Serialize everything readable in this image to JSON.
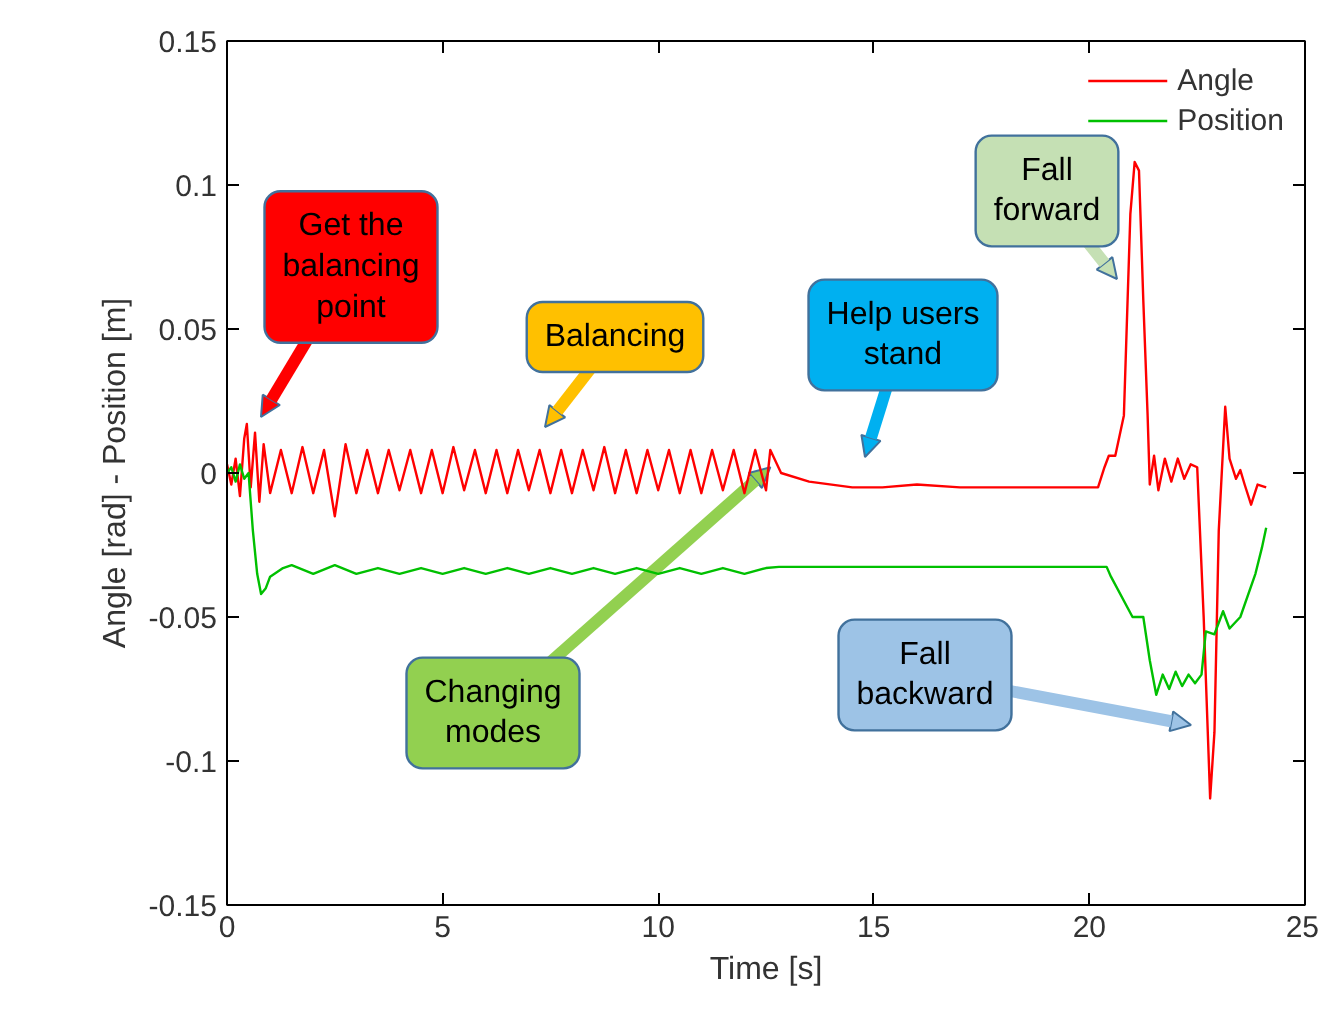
{
  "chart_data": {
    "type": "line",
    "xlabel": "Time [s]",
    "ylabel": "Angle [rad] - Position [m]",
    "legend": "top right",
    "grid": false,
    "xlim": [
      0,
      25
    ],
    "xticks": [
      0,
      5,
      10,
      15,
      20,
      25
    ],
    "ylim": [
      -0.15,
      0.15
    ],
    "yticks": [
      -0.15,
      -0.1,
      -0.05,
      0,
      0.05,
      0.1,
      0.15
    ],
    "annotations": [
      "Get the balancing point",
      "Balancing",
      "Help users stand",
      "Fall forward",
      {
        "text": "Changing modes",
        "x": 12.6,
        "y": 0.002
      },
      "Fall backward"
    ],
    "series": [
      {
        "name": "Angle",
        "color": "#ff0000",
        "x": [
          0,
          0.1,
          0.2,
          0.3,
          0.4,
          0.46,
          0.55,
          0.65,
          0.75,
          0.85,
          1.0,
          1.25,
          1.5,
          1.75,
          2.0,
          2.25,
          2.5,
          2.75,
          3.0,
          3.25,
          3.5,
          3.75,
          4.0,
          4.25,
          4.5,
          4.75,
          5.0,
          5.25,
          5.5,
          5.75,
          6.0,
          6.25,
          6.5,
          6.75,
          7.0,
          7.25,
          7.5,
          7.75,
          8.0,
          8.25,
          8.5,
          8.75,
          9.0,
          9.25,
          9.5,
          9.75,
          10.0,
          10.25,
          10.5,
          10.75,
          11.0,
          11.25,
          11.5,
          11.75,
          12.0,
          12.25,
          12.5,
          12.6,
          12.85,
          13.5,
          14.5,
          15.2,
          16,
          17,
          18,
          19,
          20.2,
          20.35,
          20.45,
          20.6,
          20.8,
          20.95,
          21.05,
          21.15,
          21.25,
          21.35,
          21.4,
          21.5,
          21.6,
          21.75,
          21.9,
          22.05,
          22.2,
          22.35,
          22.5,
          22.65,
          22.8,
          22.9,
          23.0,
          23.15,
          23.25,
          23.4,
          23.5,
          23.6,
          23.75,
          23.9,
          24.1
        ],
        "values": [
          0.003,
          -0.004,
          0.005,
          -0.008,
          0.012,
          0.017,
          -0.005,
          0.014,
          -0.01,
          0.01,
          -0.007,
          0.008,
          -0.007,
          0.009,
          -0.007,
          0.008,
          -0.015,
          0.01,
          -0.007,
          0.008,
          -0.007,
          0.008,
          -0.006,
          0.008,
          -0.007,
          0.008,
          -0.007,
          0.009,
          -0.006,
          0.008,
          -0.007,
          0.008,
          -0.007,
          0.008,
          -0.006,
          0.008,
          -0.007,
          0.008,
          -0.007,
          0.008,
          -0.006,
          0.009,
          -0.007,
          0.008,
          -0.007,
          0.008,
          -0.006,
          0.008,
          -0.007,
          0.008,
          -0.007,
          0.008,
          -0.006,
          0.008,
          -0.007,
          0.008,
          -0.006,
          0.008,
          0.0,
          -0.003,
          -0.005,
          -0.005,
          -0.004,
          -0.005,
          -0.005,
          -0.005,
          -0.005,
          0.002,
          0.006,
          0.006,
          0.02,
          0.09,
          0.108,
          0.105,
          0.06,
          0.02,
          -0.004,
          0.006,
          -0.006,
          0.005,
          -0.003,
          0.005,
          -0.002,
          0.003,
          0.002,
          -0.05,
          -0.113,
          -0.09,
          -0.02,
          0.023,
          0.005,
          -0.002,
          0.001,
          -0.004,
          -0.011,
          -0.004,
          -0.005
        ]
      },
      {
        "name": "Position",
        "color": "#00c000",
        "x": [
          0,
          0.1,
          0.2,
          0.3,
          0.4,
          0.5,
          0.6,
          0.7,
          0.79,
          0.9,
          1.0,
          1.3,
          1.5,
          2.0,
          2.5,
          3.0,
          3.5,
          4.0,
          4.5,
          5.0,
          5.5,
          6.0,
          6.5,
          7.0,
          7.5,
          8.0,
          8.5,
          9.0,
          9.5,
          10.0,
          10.5,
          11.0,
          11.5,
          12.0,
          12.5,
          12.8,
          20.4,
          20.5,
          21.0,
          21.25,
          21.4,
          21.55,
          21.7,
          21.85,
          22.0,
          22.15,
          22.3,
          22.45,
          22.6,
          22.7,
          22.9,
          23.1,
          23.25,
          23.5,
          23.85,
          24.0,
          24.1
        ],
        "values": [
          0,
          0.002,
          -0.003,
          0.003,
          -0.002,
          0.0,
          -0.02,
          -0.035,
          -0.042,
          -0.04,
          -0.036,
          -0.033,
          -0.032,
          -0.035,
          -0.032,
          -0.035,
          -0.033,
          -0.035,
          -0.033,
          -0.035,
          -0.033,
          -0.035,
          -0.033,
          -0.035,
          -0.033,
          -0.035,
          -0.033,
          -0.035,
          -0.033,
          -0.035,
          -0.033,
          -0.035,
          -0.033,
          -0.035,
          -0.033,
          -0.0326,
          -0.0326,
          -0.036,
          -0.05,
          -0.05,
          -0.065,
          -0.077,
          -0.07,
          -0.075,
          -0.069,
          -0.074,
          -0.07,
          -0.073,
          -0.07,
          -0.055,
          -0.056,
          -0.048,
          -0.054,
          -0.05,
          -0.035,
          -0.026,
          -0.019
        ]
      }
    ]
  }
}
